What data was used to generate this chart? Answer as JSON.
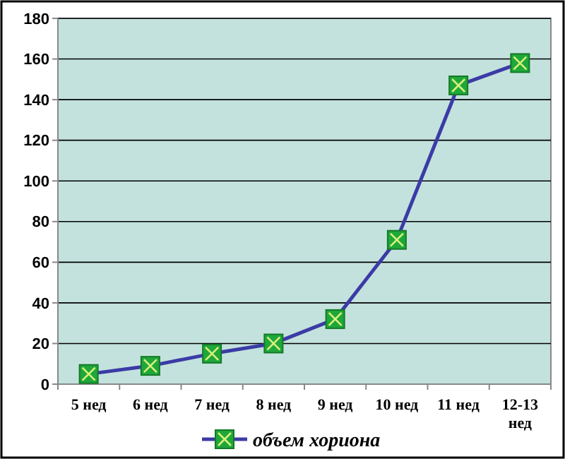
{
  "chart_data": {
    "type": "line",
    "categories": [
      "5 нед",
      "6 нед",
      "7 нед",
      "8 нед",
      "9 нед",
      "10 нед",
      "11 нед",
      "12-13 нед"
    ],
    "series": [
      {
        "name": "объем хориона",
        "color": "#3b3ba6",
        "values": [
          5,
          9,
          15,
          20,
          32,
          71,
          147,
          158
        ]
      }
    ],
    "ylim": [
      0,
      180
    ],
    "yticks": [
      0,
      20,
      40,
      60,
      80,
      100,
      120,
      140,
      160,
      180
    ],
    "grid": "y",
    "legend": "bottom",
    "marker": "square",
    "line_style": "solid"
  }
}
